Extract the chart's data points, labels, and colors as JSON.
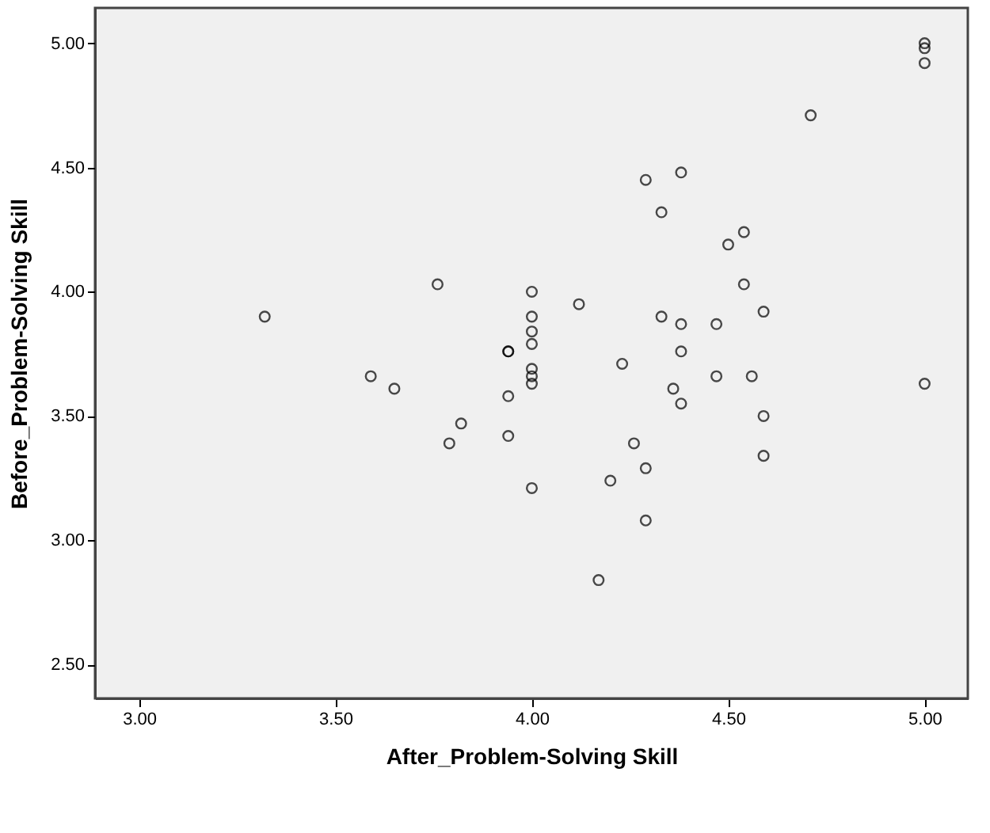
{
  "chart_data": {
    "type": "scatter",
    "xlabel": "After_Problem-Solving Skill",
    "ylabel": "Before_Problem-Solving Skill",
    "xlim": [
      2.888,
      5.11
    ],
    "ylim": [
      2.364,
      5.142
    ],
    "xticks": [
      {
        "value": 3,
        "label": "3.00"
      },
      {
        "value": 3.5,
        "label": "3.50"
      },
      {
        "value": 4,
        "label": "4.00"
      },
      {
        "value": 4.5,
        "label": "4.50"
      },
      {
        "value": 5,
        "label": "5.00"
      }
    ],
    "yticks": [
      {
        "value": 2.5,
        "label": "2.50"
      },
      {
        "value": 3,
        "label": "3.00"
      },
      {
        "value": 3.5,
        "label": "3.50"
      },
      {
        "value": 4,
        "label": "4.00"
      },
      {
        "value": 4.5,
        "label": "4.50"
      },
      {
        "value": 5,
        "label": "5.00"
      }
    ],
    "grid": false,
    "marker": "circle",
    "legend": false,
    "series": [
      {
        "color": "#000000",
        "x": [
          5.0,
          5.0,
          5.0,
          4.71,
          4.29,
          4.38,
          4.33,
          4.54,
          4.5,
          4.0,
          4.12,
          4.54,
          4.59,
          4.0,
          4.33,
          4.38,
          4.47,
          4.0,
          4.0,
          3.94,
          3.94,
          4.38,
          4.23,
          4.0,
          4.0,
          4.0,
          4.47,
          4.56,
          4.36,
          4.38,
          5.0,
          3.94,
          4.59,
          3.94,
          4.26,
          4.59,
          4.29,
          4.2,
          4.0,
          4.29,
          4.17,
          3.32,
          3.76,
          3.59,
          3.65,
          3.82,
          3.79
        ],
        "values": [
          5.0,
          4.98,
          4.92,
          4.71,
          4.45,
          4.48,
          4.32,
          4.24,
          4.19,
          4.0,
          3.95,
          4.03,
          3.92,
          3.9,
          3.9,
          3.87,
          3.87,
          3.84,
          3.79,
          3.76,
          3.76,
          3.76,
          3.71,
          3.69,
          3.66,
          3.63,
          3.66,
          3.66,
          3.61,
          3.55,
          3.63,
          3.58,
          3.5,
          3.42,
          3.39,
          3.34,
          3.29,
          3.24,
          3.21,
          3.08,
          2.84,
          3.9,
          4.03,
          3.66,
          3.61,
          3.47,
          3.39
        ]
      }
    ]
  }
}
